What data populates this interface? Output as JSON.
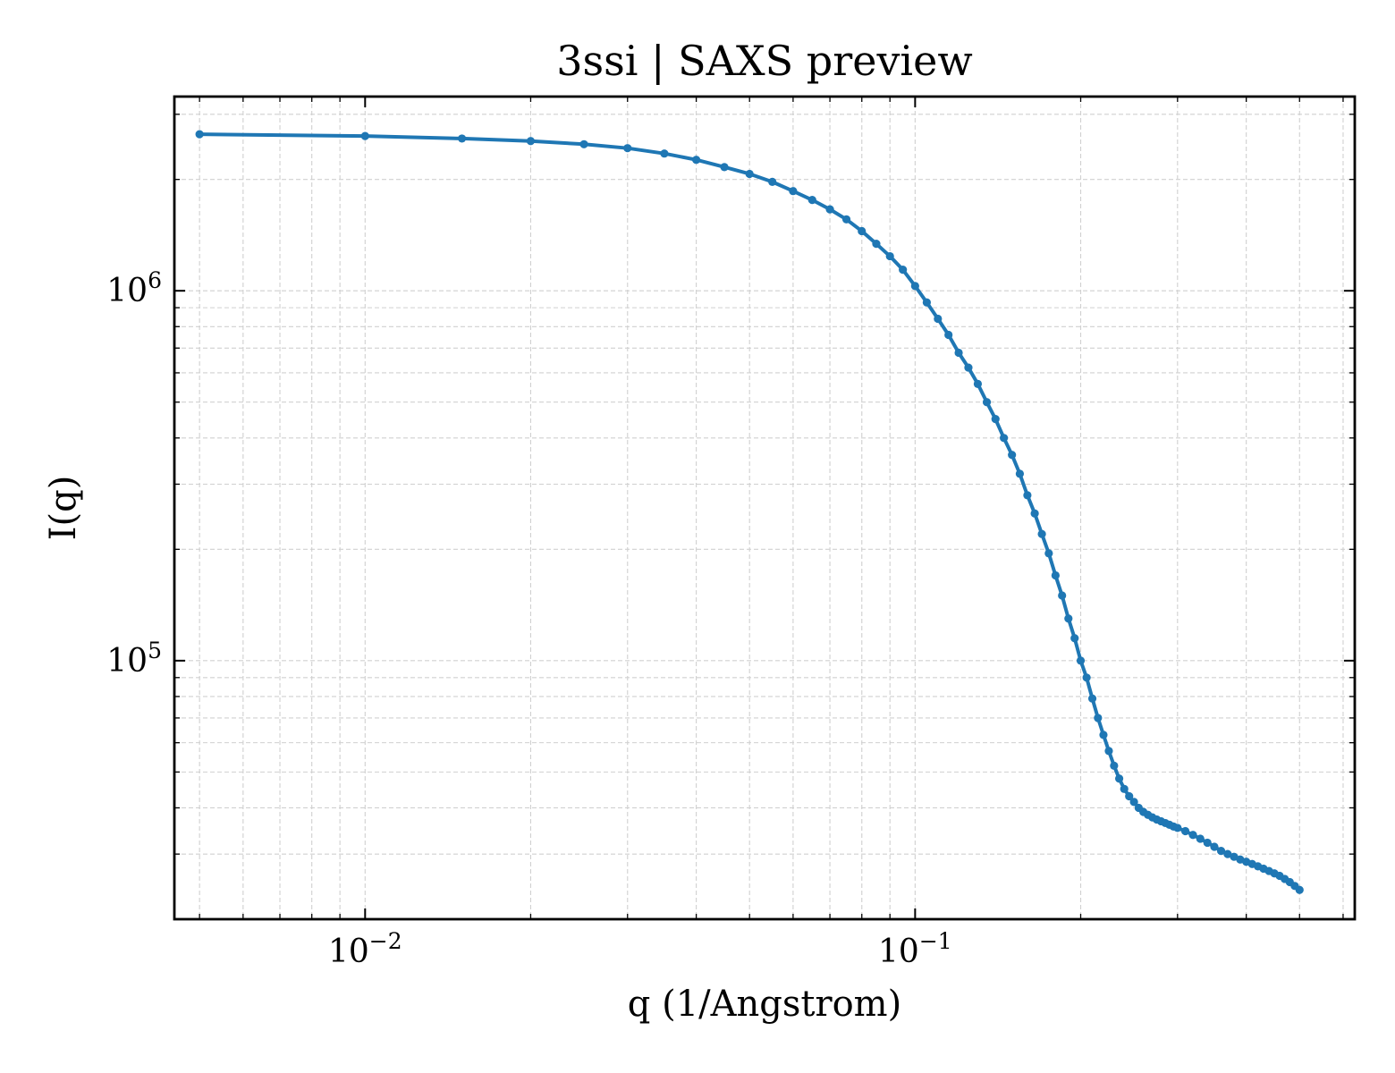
{
  "chart_data": {
    "type": "line",
    "title": "3ssi | SAXS preview",
    "xlabel": "q (1/Angstrom)",
    "ylabel": "I(q)",
    "xscale": "log",
    "yscale": "log",
    "xlim": [
      0.0045,
      0.63
    ],
    "ylim": [
      20000,
      3350000
    ],
    "grid": true,
    "legend": "none",
    "x_ticks": [
      {
        "value": 0.01,
        "label": "10",
        "exponent": "−2"
      },
      {
        "value": 0.1,
        "label": "10",
        "exponent": "−1"
      }
    ],
    "y_ticks": [
      {
        "value": 100000,
        "label": "10",
        "exponent": "5"
      },
      {
        "value": 1000000,
        "label": "10",
        "exponent": "6"
      }
    ],
    "color": "#1f77b4",
    "series": [
      {
        "x": [
          0.005,
          0.01,
          0.015,
          0.02,
          0.025,
          0.03,
          0.035,
          0.04,
          0.045,
          0.05,
          0.055,
          0.06,
          0.065,
          0.07,
          0.075,
          0.08,
          0.085,
          0.09,
          0.095,
          0.1,
          0.105,
          0.11,
          0.115,
          0.12,
          0.125,
          0.13,
          0.135,
          0.14,
          0.145,
          0.15,
          0.155,
          0.16,
          0.165,
          0.17,
          0.175,
          0.18,
          0.185,
          0.19,
          0.195,
          0.2,
          0.205,
          0.21,
          0.215,
          0.22,
          0.225,
          0.23,
          0.235,
          0.24,
          0.245,
          0.25,
          0.255,
          0.26,
          0.265,
          0.27,
          0.275,
          0.28,
          0.285,
          0.29,
          0.295,
          0.3,
          0.31,
          0.32,
          0.33,
          0.34,
          0.35,
          0.36,
          0.37,
          0.38,
          0.39,
          0.4,
          0.41,
          0.42,
          0.43,
          0.44,
          0.45,
          0.46,
          0.47,
          0.48,
          0.49,
          0.5
        ],
        "y": [
          2650000,
          2620000,
          2580000,
          2540000,
          2490000,
          2430000,
          2350000,
          2260000,
          2160000,
          2070000,
          1970000,
          1860000,
          1760000,
          1660000,
          1560000,
          1450000,
          1340000,
          1240000,
          1140000,
          1030000,
          930000,
          840000,
          760000,
          680000,
          620000,
          560000,
          500000,
          450000,
          400000,
          360000,
          320000,
          280000,
          250000,
          220000,
          195000,
          170000,
          150000,
          130000,
          115000,
          100000,
          90000,
          79000,
          70000,
          63000,
          57000,
          52000,
          48000,
          45000,
          43000,
          41500,
          40000,
          39000,
          38300,
          37700,
          37200,
          36800,
          36400,
          36000,
          35600,
          35300,
          34600,
          33800,
          33000,
          32200,
          31400,
          30600,
          30000,
          29500,
          29000,
          28600,
          28200,
          27800,
          27400,
          27000,
          26600,
          26200,
          25700,
          25200,
          24600,
          24000
        ]
      }
    ]
  }
}
